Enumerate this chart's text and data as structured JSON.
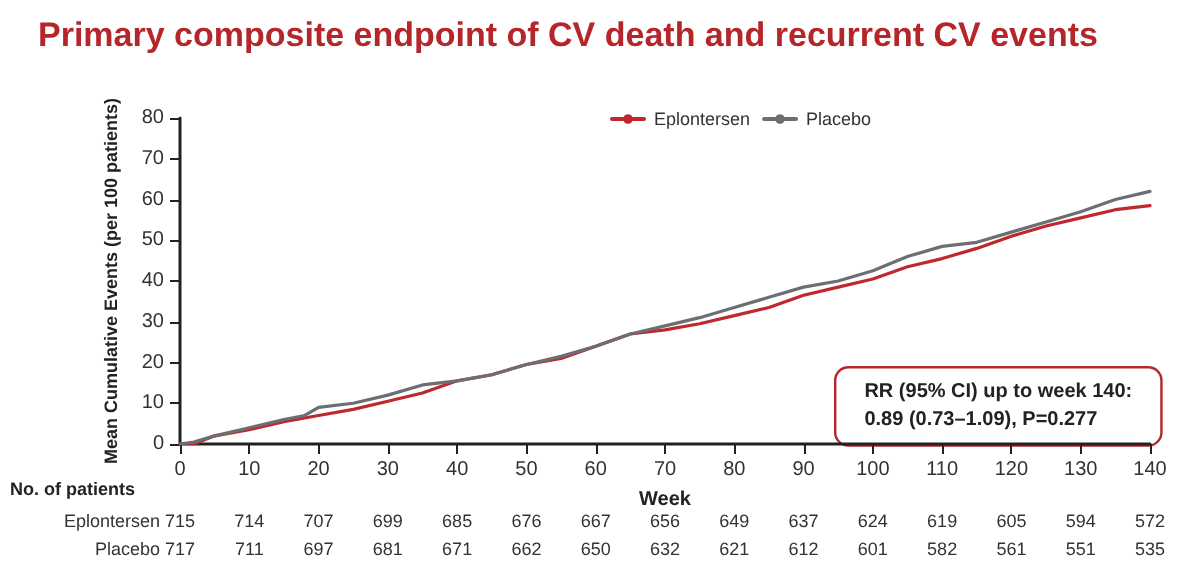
{
  "chart_data": {
    "type": "line",
    "title": "Primary composite endpoint of CV death and recurrent CV events",
    "xlabel": "Week",
    "ylabel": "Mean Cumulative Events (per 100 patients)",
    "xlim": [
      0,
      140
    ],
    "xticks": [
      0,
      10,
      20,
      30,
      40,
      50,
      60,
      70,
      80,
      90,
      100,
      110,
      120,
      130,
      140
    ],
    "ylim": [
      0,
      80
    ],
    "yticks": [
      0,
      10,
      20,
      30,
      40,
      50,
      60,
      70,
      80
    ],
    "grid": false,
    "legend": "top",
    "line_style": "solid",
    "series": [
      {
        "name": "Eplontersen",
        "color": "#c0282d",
        "x": [
          0,
          2,
          5,
          10,
          15,
          20,
          25,
          30,
          35,
          40,
          45,
          50,
          55,
          60,
          65,
          70,
          75,
          80,
          85,
          90,
          95,
          100,
          105,
          110,
          115,
          120,
          125,
          130,
          135,
          140
        ],
        "values": [
          0,
          0,
          2,
          3.5,
          5.5,
          7,
          8.5,
          10.5,
          12.5,
          15.5,
          17,
          19.5,
          21,
          24,
          27,
          28,
          29.5,
          31.5,
          33.5,
          36.5,
          38.5,
          40.5,
          43.5,
          45.5,
          48,
          51,
          53.5,
          55.5,
          57.5,
          58.5
        ]
      },
      {
        "name": "Placebo",
        "color": "#6d6e71",
        "x": [
          0,
          2,
          5,
          10,
          15,
          18,
          20,
          25,
          30,
          35,
          40,
          45,
          50,
          55,
          60,
          65,
          70,
          75,
          80,
          85,
          90,
          95,
          100,
          105,
          110,
          115,
          120,
          125,
          130,
          135,
          140
        ],
        "values": [
          0,
          0.5,
          2,
          4,
          6,
          7,
          9,
          10,
          12,
          14.5,
          15.5,
          17,
          19.5,
          21.5,
          24,
          27,
          29,
          31,
          33.5,
          36,
          38.5,
          40,
          42.5,
          46,
          48.5,
          49.5,
          52,
          54.5,
          57,
          60,
          62
        ]
      }
    ],
    "annotations": [
      "RR (95% CI) up to week 140:\n0.89 (0.73–1.09), P=0.277",
      "No. of patients",
      "Eplontersen",
      "715 714 707 699 685 676 667 656 649 637 624 619 605 594 572",
      "Placebo",
      "717 711 697 681 671 662 650 632 621 612 601 582 561 551 535"
    ]
  }
}
